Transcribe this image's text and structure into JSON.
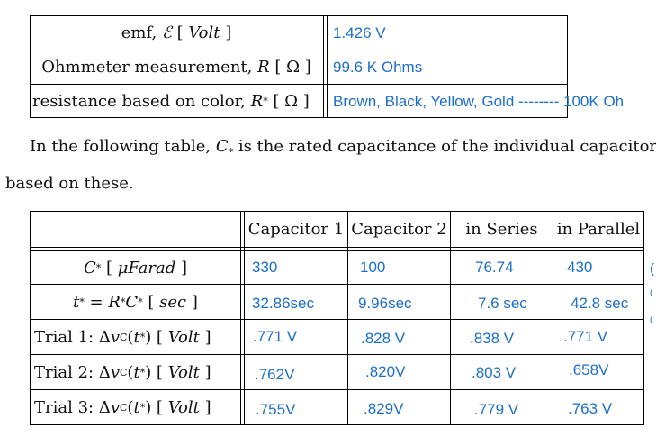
{
  "top_table": {
    "rows": [
      {
        "label": "emf, ℰ [ Volt ]",
        "value": "1.426 V"
      },
      {
        "label": "Ohmmeter measurement, R [ Ω ]",
        "value": "99.6 K Ohms"
      },
      {
        "label": "resistance based on color, R* [ Ω ]",
        "value": "Brown, Black, Yellow, Gold -------- 100K Oh"
      }
    ]
  },
  "paragraph": {
    "line1": "In the following table, C* is the rated capacitance of the individual capacitor",
    "line2": "based on these."
  },
  "bottom_table": {
    "headers": [
      "Capacitor 1",
      "Capacitor 2",
      "in Series",
      "in Parallel"
    ],
    "rows": [
      {
        "label": "C* [ μFarad ]",
        "values": [
          "330",
          "100",
          "76.74",
          "430"
        ]
      },
      {
        "label": "t* = R*C* [ sec ]",
        "values": [
          "32.86sec",
          "9.96sec",
          "7.6 sec",
          "42.8 sec"
        ]
      },
      {
        "label": "Trial 1: ΔvC(t*) [ Volt ]",
        "values": [
          ".771 V",
          ".828 V",
          ".838 V",
          ".771 V"
        ]
      },
      {
        "label": "Trial 2: ΔvC(t*) [ Volt ]",
        "values": [
          ".762V",
          ".820V",
          ".803 V",
          ".658V"
        ]
      },
      {
        "label": "Trial 3: ΔvC(t*) [ Volt ]",
        "values": [
          ".755V",
          ".829V",
          ".779 V",
          ".763 V"
        ]
      }
    ]
  },
  "edge_marks": [
    "(",
    "(",
    "("
  ]
}
